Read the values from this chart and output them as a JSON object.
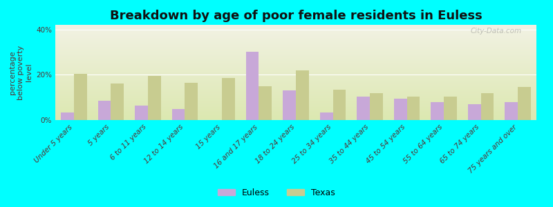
{
  "title": "Breakdown by age of poor female residents in Euless",
  "ylabel": "percentage\nbelow poverty\nlevel",
  "categories": [
    "Under 5 years",
    "5 years",
    "6 to 11 years",
    "12 to 14 years",
    "15 years",
    "16 and 17 years",
    "18 to 24 years",
    "25 to 34 years",
    "35 to 44 years",
    "45 to 54 years",
    "55 to 64 years",
    "65 to 74 years",
    "75 years and over"
  ],
  "euless": [
    3.5,
    8.5,
    6.5,
    5.0,
    0.0,
    30.0,
    13.0,
    3.5,
    10.5,
    9.5,
    8.0,
    7.0,
    8.0
  ],
  "texas": [
    20.5,
    16.0,
    19.5,
    16.5,
    18.5,
    15.0,
    22.0,
    13.5,
    12.0,
    10.5,
    10.5,
    12.0,
    14.5
  ],
  "euless_color": "#c8a8d8",
  "texas_color": "#c8cc90",
  "background_color": "#00ffff",
  "plot_bg_top": "#f2f2e4",
  "plot_bg_bottom": "#dce8b0",
  "ylim": [
    0,
    42
  ],
  "yticks": [
    0,
    20,
    40
  ],
  "ytick_labels": [
    "0%",
    "20%",
    "40%"
  ],
  "bar_width": 0.35,
  "title_fontsize": 13,
  "axis_label_fontsize": 8,
  "tick_fontsize": 7.5,
  "legend_fontsize": 9,
  "watermark": "City-Data.com"
}
